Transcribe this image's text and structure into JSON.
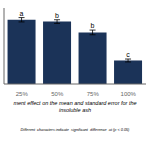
{
  "chart_data": {
    "type": "bar",
    "title": "ment effect on the mean and standard error for the\ninsoluble ash",
    "categories": [
      "25%",
      "50%",
      "75%",
      "100%"
    ],
    "values": [
      3.55,
      3.45,
      2.85,
      1.3
    ],
    "errors": [
      0.12,
      0.1,
      0.13,
      0.08
    ],
    "color": "#1b3358",
    "ylim": [
      0,
      4.2
    ],
    "yticks": [],
    "tick_labels": "x",
    "grid": false,
    "annotations": [
      {
        "category": "25%",
        "text": "a"
      },
      {
        "category": "50%",
        "text": "b"
      },
      {
        "category": "75%",
        "text": "b"
      },
      {
        "category": "100%",
        "text": "c"
      },
      {
        "text": "Different  characters indicate  significant  difference  at (p < 0.05)"
      }
    ]
  }
}
